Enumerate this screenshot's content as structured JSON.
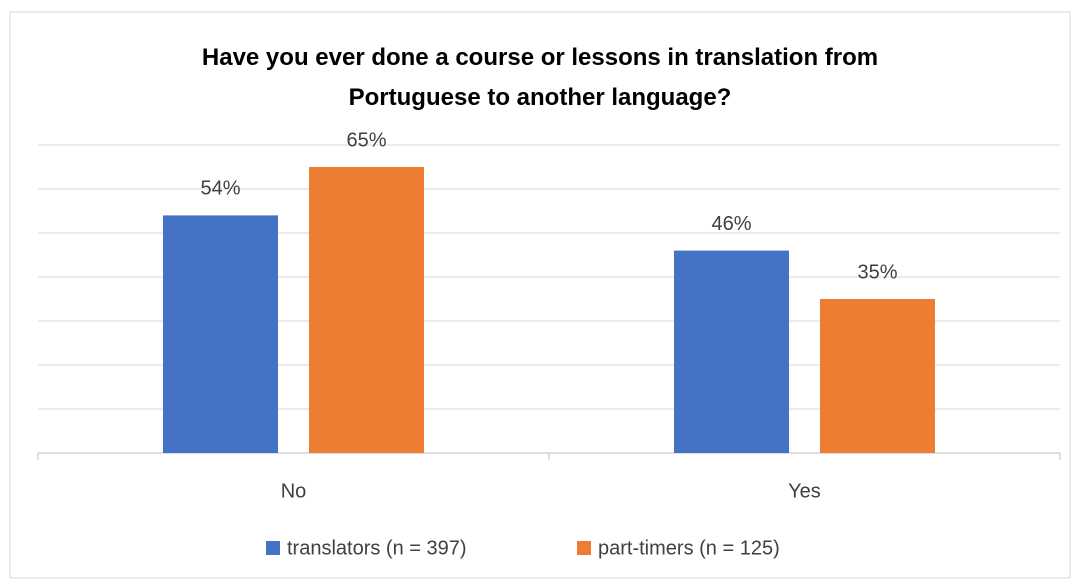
{
  "chart_data": {
    "type": "bar",
    "title": "Have you ever done a course or lessons in translation from Portuguese to another language?",
    "categories": [
      "No",
      "Yes"
    ],
    "series": [
      {
        "name": "translators (n = 397)",
        "color": "#4472c4",
        "values": [
          54,
          46
        ],
        "value_labels": [
          "54%",
          "46%"
        ]
      },
      {
        "name": "part-timers (n = 125)",
        "color": "#ed7d31",
        "values": [
          65,
          35
        ],
        "value_labels": [
          "65%",
          "35%"
        ]
      }
    ],
    "ylim": [
      0,
      70
    ],
    "yticks": [
      0,
      10,
      20,
      30,
      40,
      50,
      60,
      70
    ],
    "grid": true,
    "legend": "bottom"
  }
}
